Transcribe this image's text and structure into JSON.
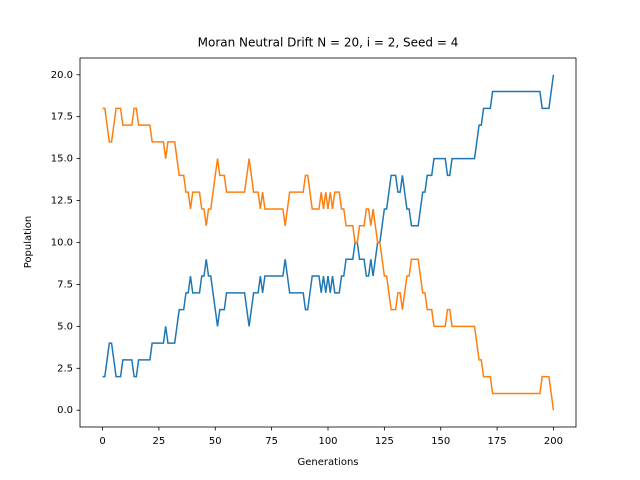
{
  "chart_data": {
    "type": "line",
    "title": "Moran Neutral Drift N = 20, i = 2, Seed = 4",
    "x_label": "Generations",
    "y_label": "Population",
    "x": [
      0,
      1,
      2,
      3,
      4,
      5,
      6,
      7,
      8,
      9,
      10,
      11,
      12,
      13,
      14,
      15,
      16,
      17,
      18,
      19,
      20,
      21,
      22,
      23,
      24,
      25,
      26,
      27,
      28,
      29,
      30,
      31,
      32,
      33,
      34,
      35,
      36,
      37,
      38,
      39,
      40,
      41,
      42,
      43,
      44,
      45,
      46,
      47,
      48,
      49,
      50,
      51,
      52,
      53,
      54,
      55,
      56,
      57,
      58,
      59,
      60,
      61,
      62,
      63,
      64,
      65,
      66,
      67,
      68,
      69,
      70,
      71,
      72,
      73,
      74,
      75,
      76,
      77,
      78,
      79,
      80,
      81,
      82,
      83,
      84,
      85,
      86,
      87,
      88,
      89,
      90,
      91,
      92,
      93,
      94,
      95,
      96,
      97,
      98,
      99,
      100,
      101,
      102,
      103,
      104,
      105,
      106,
      107,
      108,
      109,
      110,
      111,
      112,
      113,
      114,
      115,
      116,
      117,
      118,
      119,
      120,
      121,
      122,
      123,
      124,
      125,
      126,
      127,
      128,
      129,
      130,
      131,
      132,
      133,
      134,
      135,
      136,
      137,
      138,
      139,
      140,
      141,
      142,
      143,
      144,
      145,
      146,
      147,
      148,
      149,
      150,
      151,
      152,
      153,
      154,
      155,
      156,
      157,
      158,
      159,
      160,
      161,
      162,
      163,
      164,
      165,
      166,
      167,
      168,
      169,
      170,
      171,
      172,
      173,
      174,
      175,
      176,
      177,
      178,
      179,
      180,
      181,
      182,
      183,
      184,
      185,
      186,
      187,
      188,
      189,
      190,
      191,
      192,
      193,
      194,
      195,
      196,
      197,
      198,
      199,
      200
    ],
    "series": [
      {
        "color": "#1f77b4",
        "values": [
          2,
          2,
          3,
          4,
          4,
          3,
          2,
          2,
          2,
          3,
          3,
          3,
          3,
          3,
          2,
          2,
          3,
          3,
          3,
          3,
          3,
          3,
          4,
          4,
          4,
          4,
          4,
          4,
          5,
          4,
          4,
          4,
          4,
          5,
          6,
          6,
          6,
          7,
          7,
          8,
          7,
          7,
          7,
          7,
          8,
          8,
          9,
          8,
          8,
          7,
          6,
          5,
          6,
          6,
          6,
          7,
          7,
          7,
          7,
          7,
          7,
          7,
          7,
          7,
          6,
          5,
          6,
          7,
          7,
          7,
          8,
          7,
          8,
          8,
          8,
          8,
          8,
          8,
          8,
          8,
          8,
          9,
          8,
          7,
          7,
          7,
          7,
          7,
          7,
          7,
          6,
          6,
          7,
          8,
          8,
          8,
          8,
          7,
          8,
          7,
          8,
          7,
          8,
          7,
          7,
          7,
          8,
          8,
          9,
          9,
          9,
          9,
          10,
          10,
          9,
          9,
          9,
          8,
          8,
          9,
          8,
          9,
          10,
          10,
          11,
          12,
          12,
          13,
          14,
          14,
          14,
          13,
          13,
          14,
          13,
          12,
          12,
          11,
          11,
          11,
          11,
          12,
          13,
          13,
          14,
          14,
          14,
          15,
          15,
          15,
          15,
          15,
          15,
          14,
          14,
          15,
          15,
          15,
          15,
          15,
          15,
          15,
          15,
          15,
          15,
          15,
          16,
          17,
          17,
          18,
          18,
          18,
          18,
          19,
          19,
          19,
          19,
          19,
          19,
          19,
          19,
          19,
          19,
          19,
          19,
          19,
          19,
          19,
          19,
          19,
          19,
          19,
          19,
          19,
          19,
          18,
          18,
          18,
          18,
          19,
          20
        ]
      },
      {
        "color": "#ff7f0e",
        "values": [
          18,
          18,
          17,
          16,
          16,
          17,
          18,
          18,
          18,
          17,
          17,
          17,
          17,
          17,
          18,
          18,
          17,
          17,
          17,
          17,
          17,
          17,
          16,
          16,
          16,
          16,
          16,
          16,
          15,
          16,
          16,
          16,
          16,
          15,
          14,
          14,
          14,
          13,
          13,
          12,
          13,
          13,
          13,
          13,
          12,
          12,
          11,
          12,
          12,
          13,
          14,
          15,
          14,
          14,
          14,
          13,
          13,
          13,
          13,
          13,
          13,
          13,
          13,
          13,
          14,
          15,
          14,
          13,
          13,
          13,
          12,
          13,
          12,
          12,
          12,
          12,
          12,
          12,
          12,
          12,
          12,
          11,
          12,
          13,
          13,
          13,
          13,
          13,
          13,
          13,
          14,
          14,
          13,
          12,
          12,
          12,
          12,
          13,
          12,
          13,
          12,
          13,
          12,
          13,
          13,
          13,
          12,
          12,
          11,
          11,
          11,
          11,
          10,
          10,
          11,
          11,
          11,
          12,
          12,
          11,
          12,
          11,
          10,
          10,
          9,
          8,
          8,
          7,
          6,
          6,
          6,
          7,
          7,
          6,
          7,
          8,
          8,
          9,
          9,
          9,
          9,
          8,
          7,
          7,
          6,
          6,
          6,
          5,
          5,
          5,
          5,
          5,
          5,
          6,
          6,
          5,
          5,
          5,
          5,
          5,
          5,
          5,
          5,
          5,
          5,
          5,
          4,
          3,
          3,
          2,
          2,
          2,
          2,
          1,
          1,
          1,
          1,
          1,
          1,
          1,
          1,
          1,
          1,
          1,
          1,
          1,
          1,
          1,
          1,
          1,
          1,
          1,
          1,
          1,
          1,
          2,
          2,
          2,
          2,
          1,
          0
        ]
      }
    ],
    "xlim": [
      -10,
      210
    ],
    "xticks": [
      0,
      25,
      50,
      75,
      100,
      125,
      150,
      175,
      200
    ],
    "ylim": [
      -1,
      21
    ],
    "yticks": [
      {
        "value": 0,
        "label": "0.0"
      },
      {
        "value": 2.5,
        "label": "2.5"
      },
      {
        "value": 5,
        "label": "5.0"
      },
      {
        "value": 7.5,
        "label": "7.5"
      },
      {
        "value": 10,
        "label": "10.0"
      },
      {
        "value": 12.5,
        "label": "12.5"
      },
      {
        "value": 15,
        "label": "15.0"
      },
      {
        "value": 17.5,
        "label": "17.5"
      },
      {
        "value": 20,
        "label": "20.0"
      }
    ]
  }
}
